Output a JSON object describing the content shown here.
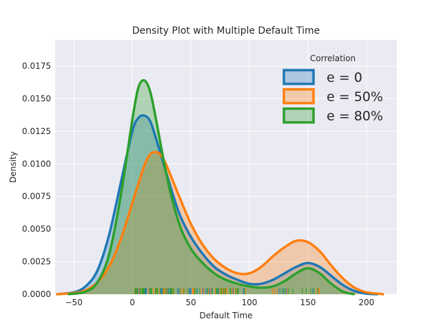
{
  "chart_data": {
    "type": "area",
    "title": "Density Plot with Multiple Default Time",
    "xlabel": "Default Time",
    "ylabel": "Density",
    "xlim": [
      -66,
      226
    ],
    "ylim": [
      0,
      0.0195
    ],
    "xticks": [
      -50,
      0,
      50,
      100,
      150,
      200
    ],
    "xtick_labels": [
      "−50",
      "0",
      "50",
      "100",
      "150",
      "200"
    ],
    "yticks": [
      0.0,
      0.0025,
      0.005,
      0.0075,
      0.01,
      0.0125,
      0.015,
      0.0175
    ],
    "ytick_labels": [
      "0.0000",
      "0.0025",
      "0.0050",
      "0.0075",
      "0.0100",
      "0.0125",
      "0.0150",
      "0.0175"
    ],
    "grid": true,
    "legend": {
      "title": "Correlation",
      "placement": "top-right"
    },
    "series": [
      {
        "name": "e = 0",
        "color": "#1f77b4",
        "x": [
          -65,
          -50,
          -40,
          -30,
          -20,
          -10,
          0,
          5,
          10,
          15,
          20,
          30,
          40,
          50,
          60,
          70,
          80,
          90,
          100,
          110,
          120,
          130,
          140,
          150,
          160,
          170,
          180,
          190,
          200,
          210
        ],
        "y": [
          0.0,
          0.00015,
          0.0006,
          0.0018,
          0.0045,
          0.0085,
          0.0125,
          0.0135,
          0.0137,
          0.0133,
          0.012,
          0.009,
          0.0062,
          0.0044,
          0.0031,
          0.0021,
          0.0015,
          0.0011,
          0.0008,
          0.0008,
          0.0011,
          0.0016,
          0.0021,
          0.0024,
          0.0021,
          0.0014,
          0.0007,
          0.00025,
          5e-05,
          0.0
        ]
      },
      {
        "name": "e = 50%",
        "color": "#ff7f0e",
        "x": [
          -65,
          -50,
          -40,
          -30,
          -20,
          -10,
          0,
          10,
          15,
          20,
          25,
          30,
          40,
          50,
          60,
          70,
          80,
          90,
          100,
          110,
          120,
          130,
          140,
          150,
          160,
          170,
          180,
          190,
          200,
          215
        ],
        "y": [
          0.0,
          0.0001,
          0.0003,
          0.0009,
          0.0021,
          0.0042,
          0.007,
          0.0098,
          0.0107,
          0.0109,
          0.0106,
          0.0097,
          0.0075,
          0.0054,
          0.0038,
          0.0027,
          0.002,
          0.0016,
          0.0016,
          0.0021,
          0.0029,
          0.0036,
          0.0041,
          0.004,
          0.0033,
          0.0022,
          0.0012,
          0.0005,
          0.00015,
          0.0
        ]
      },
      {
        "name": "e = 80%",
        "color": "#2ca02c",
        "x": [
          -55,
          -40,
          -30,
          -20,
          -10,
          0,
          5,
          10,
          15,
          20,
          30,
          40,
          50,
          60,
          70,
          80,
          90,
          100,
          110,
          120,
          130,
          140,
          150,
          160,
          170,
          180,
          190
        ],
        "y": [
          0.0,
          0.0002,
          0.0009,
          0.003,
          0.0075,
          0.0134,
          0.0158,
          0.0164,
          0.0156,
          0.0135,
          0.0088,
          0.0054,
          0.0035,
          0.0024,
          0.0016,
          0.0011,
          0.0008,
          0.0006,
          0.0005,
          0.0006,
          0.001,
          0.0016,
          0.002,
          0.0016,
          0.0008,
          0.0002,
          0.0
        ]
      }
    ]
  }
}
